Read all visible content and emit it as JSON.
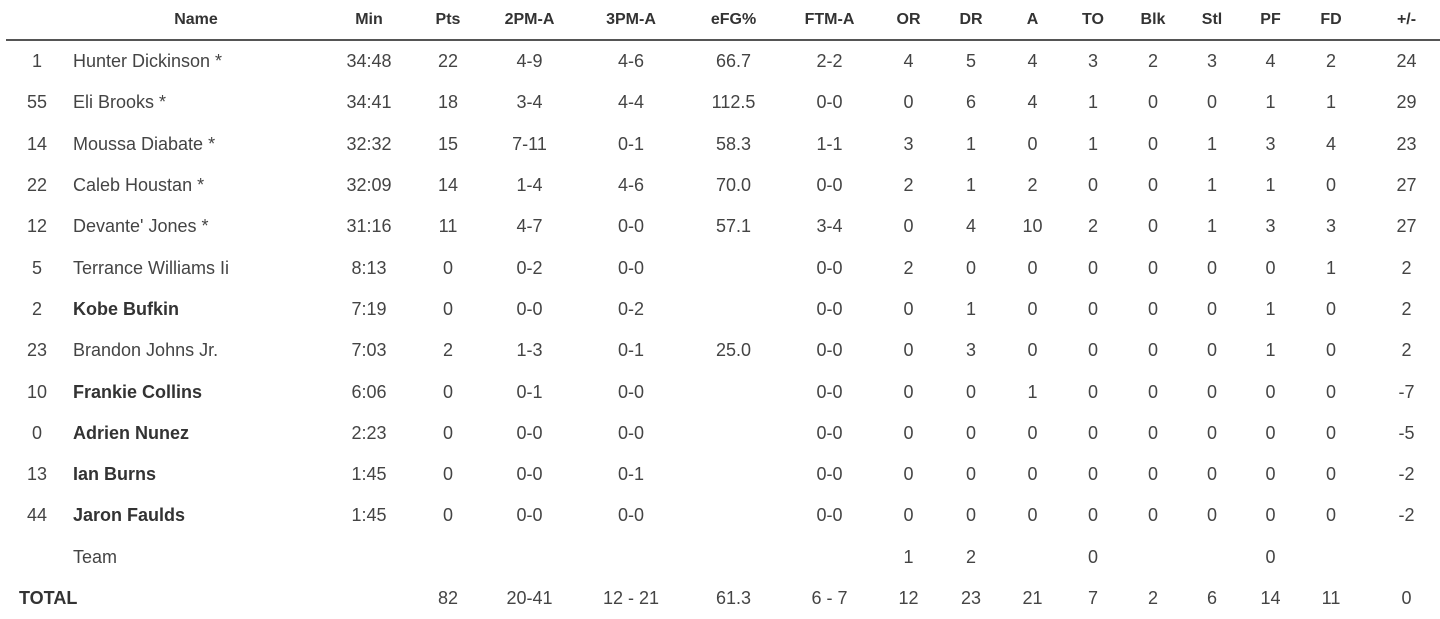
{
  "columns": [
    "",
    "Name",
    "Min",
    "Pts",
    "2PM-A",
    "3PM-A",
    "eFG%",
    "FTM-A",
    "OR",
    "DR",
    "A",
    "TO",
    "Blk",
    "Stl",
    "PF",
    "FD",
    "+/-"
  ],
  "players": [
    {
      "num": "1",
      "name": "Hunter Dickinson *",
      "bold": false,
      "min": "34:48",
      "pts": "22",
      "p2": "4-9",
      "p3": "4-6",
      "efg": "66.7",
      "ft": "2-2",
      "or": "4",
      "dr": "5",
      "a": "4",
      "to": "3",
      "blk": "2",
      "stl": "3",
      "pf": "4",
      "fd": "2",
      "pm": "24"
    },
    {
      "num": "55",
      "name": "Eli Brooks *",
      "bold": false,
      "min": "34:41",
      "pts": "18",
      "p2": "3-4",
      "p3": "4-4",
      "efg": "112.5",
      "ft": "0-0",
      "or": "0",
      "dr": "6",
      "a": "4",
      "to": "1",
      "blk": "0",
      "stl": "0",
      "pf": "1",
      "fd": "1",
      "pm": "29"
    },
    {
      "num": "14",
      "name": "Moussa Diabate *",
      "bold": false,
      "min": "32:32",
      "pts": "15",
      "p2": "7-11",
      "p3": "0-1",
      "efg": "58.3",
      "ft": "1-1",
      "or": "3",
      "dr": "1",
      "a": "0",
      "to": "1",
      "blk": "0",
      "stl": "1",
      "pf": "3",
      "fd": "4",
      "pm": "23"
    },
    {
      "num": "22",
      "name": "Caleb Houstan *",
      "bold": false,
      "min": "32:09",
      "pts": "14",
      "p2": "1-4",
      "p3": "4-6",
      "efg": "70.0",
      "ft": "0-0",
      "or": "2",
      "dr": "1",
      "a": "2",
      "to": "0",
      "blk": "0",
      "stl": "1",
      "pf": "1",
      "fd": "0",
      "pm": "27"
    },
    {
      "num": "12",
      "name": "Devante' Jones *",
      "bold": false,
      "min": "31:16",
      "pts": "11",
      "p2": "4-7",
      "p3": "0-0",
      "efg": "57.1",
      "ft": "3-4",
      "or": "0",
      "dr": "4",
      "a": "10",
      "to": "2",
      "blk": "0",
      "stl": "1",
      "pf": "3",
      "fd": "3",
      "pm": "27"
    },
    {
      "num": "5",
      "name": "Terrance Williams Ii",
      "bold": false,
      "min": "8:13",
      "pts": "0",
      "p2": "0-2",
      "p3": "0-0",
      "efg": "",
      "ft": "0-0",
      "or": "2",
      "dr": "0",
      "a": "0",
      "to": "0",
      "blk": "0",
      "stl": "0",
      "pf": "0",
      "fd": "1",
      "pm": "2"
    },
    {
      "num": "2",
      "name": "Kobe Bufkin",
      "bold": true,
      "min": "7:19",
      "pts": "0",
      "p2": "0-0",
      "p3": "0-2",
      "efg": "",
      "ft": "0-0",
      "or": "0",
      "dr": "1",
      "a": "0",
      "to": "0",
      "blk": "0",
      "stl": "0",
      "pf": "1",
      "fd": "0",
      "pm": "2"
    },
    {
      "num": "23",
      "name": "Brandon Johns Jr.",
      "bold": false,
      "min": "7:03",
      "pts": "2",
      "p2": "1-3",
      "p3": "0-1",
      "efg": "25.0",
      "ft": "0-0",
      "or": "0",
      "dr": "3",
      "a": "0",
      "to": "0",
      "blk": "0",
      "stl": "0",
      "pf": "1",
      "fd": "0",
      "pm": "2"
    },
    {
      "num": "10",
      "name": "Frankie Collins",
      "bold": true,
      "min": "6:06",
      "pts": "0",
      "p2": "0-1",
      "p3": "0-0",
      "efg": "",
      "ft": "0-0",
      "or": "0",
      "dr": "0",
      "a": "1",
      "to": "0",
      "blk": "0",
      "stl": "0",
      "pf": "0",
      "fd": "0",
      "pm": "-7"
    },
    {
      "num": "0",
      "name": "Adrien Nunez",
      "bold": true,
      "min": "2:23",
      "pts": "0",
      "p2": "0-0",
      "p3": "0-0",
      "efg": "",
      "ft": "0-0",
      "or": "0",
      "dr": "0",
      "a": "0",
      "to": "0",
      "blk": "0",
      "stl": "0",
      "pf": "0",
      "fd": "0",
      "pm": "-5"
    },
    {
      "num": "13",
      "name": "Ian Burns",
      "bold": true,
      "min": "1:45",
      "pts": "0",
      "p2": "0-0",
      "p3": "0-1",
      "efg": "",
      "ft": "0-0",
      "or": "0",
      "dr": "0",
      "a": "0",
      "to": "0",
      "blk": "0",
      "stl": "0",
      "pf": "0",
      "fd": "0",
      "pm": "-2"
    },
    {
      "num": "44",
      "name": "Jaron Faulds",
      "bold": true,
      "min": "1:45",
      "pts": "0",
      "p2": "0-0",
      "p3": "0-0",
      "efg": "",
      "ft": "0-0",
      "or": "0",
      "dr": "0",
      "a": "0",
      "to": "0",
      "blk": "0",
      "stl": "0",
      "pf": "0",
      "fd": "0",
      "pm": "-2"
    },
    {
      "num": "",
      "name": "Team",
      "bold": false,
      "min": "",
      "pts": "",
      "p2": "",
      "p3": "",
      "efg": "",
      "ft": "",
      "or": "1",
      "dr": "2",
      "a": "",
      "to": "0",
      "blk": "",
      "stl": "",
      "pf": "0",
      "fd": "",
      "pm": ""
    }
  ],
  "total": {
    "label": "TOTAL",
    "min": "",
    "pts": "82",
    "p2": "20-41",
    "p3": "12 - 21",
    "efg": "61.3",
    "ft": "6 - 7",
    "or": "12",
    "dr": "23",
    "a": "21",
    "to": "7",
    "blk": "2",
    "stl": "6",
    "pf": "14",
    "fd": "11",
    "pm": "0"
  }
}
